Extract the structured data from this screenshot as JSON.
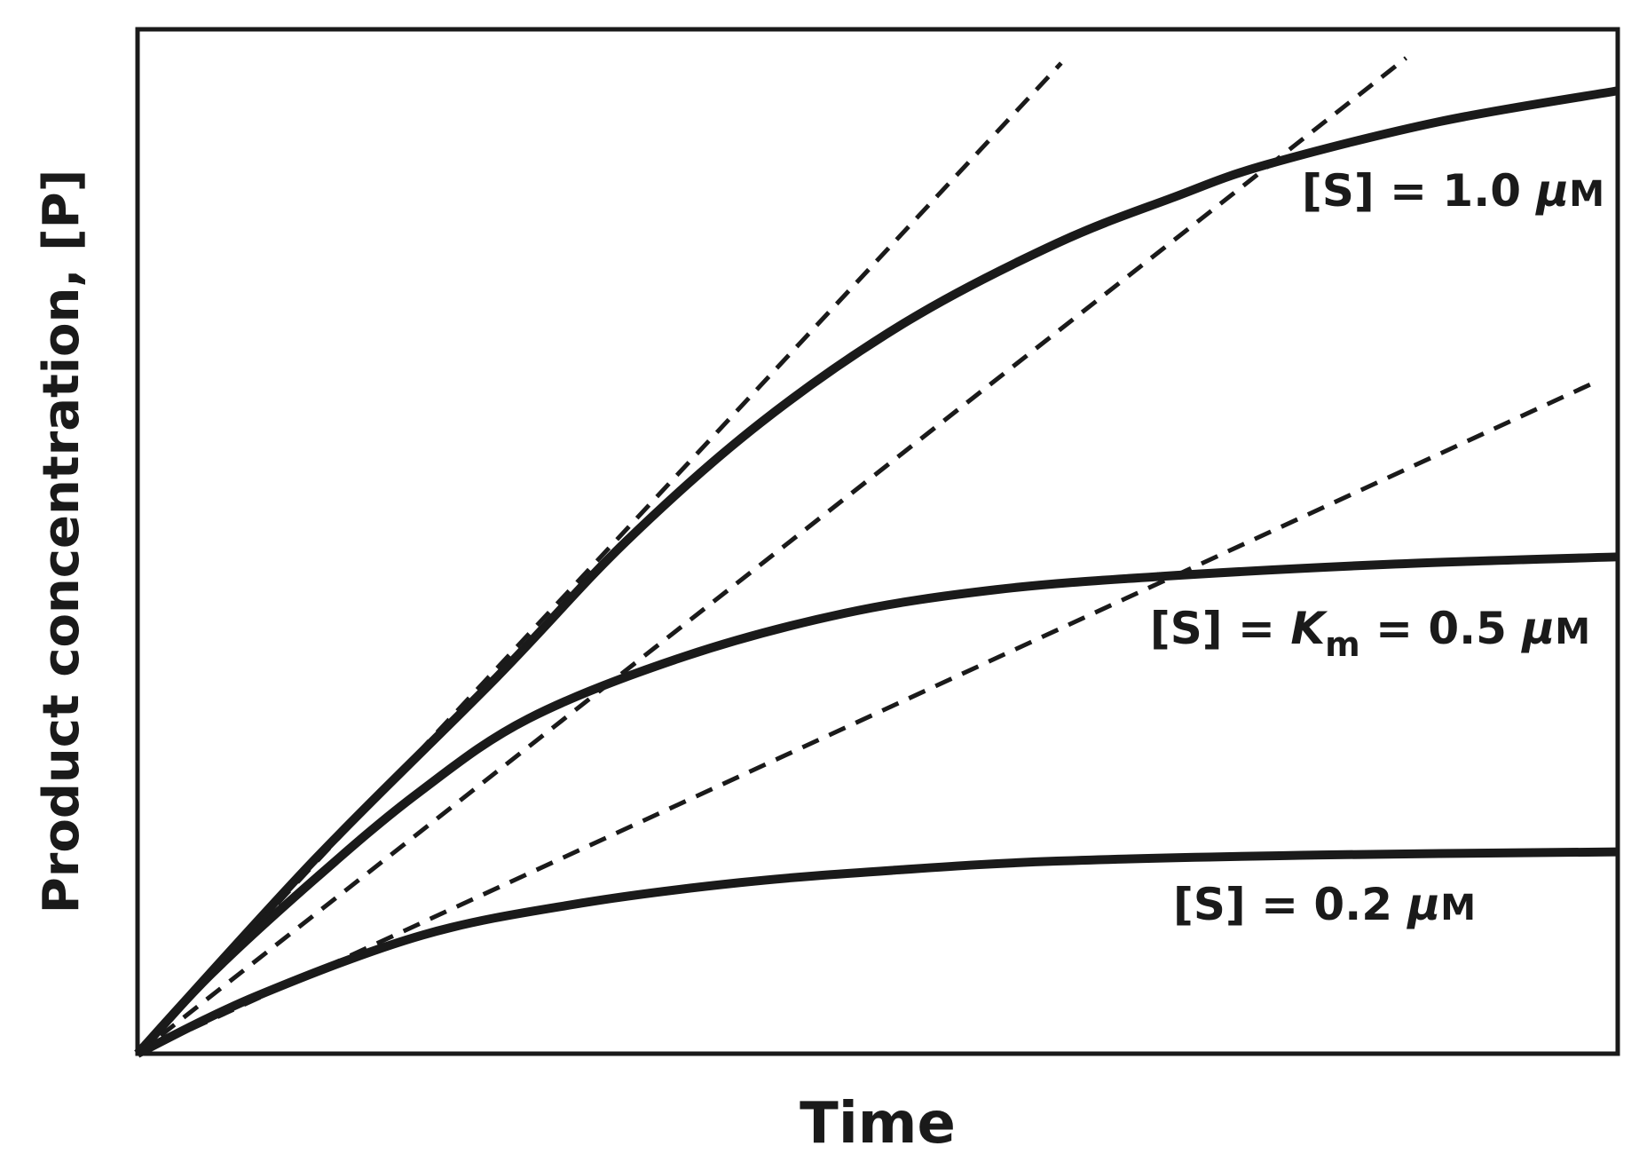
{
  "chart_data": {
    "type": "line",
    "title": "",
    "xlabel": "Time",
    "ylabel": "Product concentration, [P]",
    "xlim": [
      0,
      100
    ],
    "ylim": [
      0,
      100
    ],
    "grid": false,
    "ticks": false,
    "series": [
      {
        "name": "[S] = 1.0 μM",
        "style": "solid",
        "x": [
          0,
          12,
          24.3,
          33,
          42.1,
          52,
          62.1,
          70,
          76.3,
          88,
          100
        ],
        "y": [
          0,
          19,
          36.8,
          50,
          61.6,
          71.5,
          79.1,
          83.6,
          86.8,
          91,
          94
        ]
      },
      {
        "name": "[S] = Km = 0.5 μM",
        "style": "solid",
        "x": [
          0,
          5,
          12.1,
          19,
          26.4,
          37,
          47.8,
          58,
          69.2,
          85,
          100
        ],
        "y": [
          0,
          7.8,
          17.2,
          25.5,
          32.7,
          38.8,
          43,
          45.3,
          46.6,
          47.8,
          48.5
        ]
      },
      {
        "name": "[S] = 0.2 μM",
        "style": "solid",
        "x": [
          0,
          8,
          19.3,
          30,
          40.7,
          51,
          62.1,
          80,
          100
        ],
        "y": [
          0,
          5.6,
          11.6,
          14.7,
          16.7,
          17.9,
          18.8,
          19.4,
          19.7
        ]
      },
      {
        "name": "",
        "style": "dashed",
        "x": [
          0,
          62.4
        ],
        "y": [
          0,
          96.7
        ]
      },
      {
        "name": "",
        "style": "dashed",
        "x": [
          0,
          85.7
        ],
        "y": [
          0,
          97.2
        ]
      },
      {
        "name": "",
        "style": "dashed",
        "x": [
          0,
          98.4
        ],
        "y": [
          0,
          65.5
        ]
      }
    ],
    "annotations": [
      {
        "parts": [
          "[S] = 1.0 ",
          "μ",
          "M"
        ]
      },
      {
        "parts": [
          "[S] = ",
          "K",
          "m",
          " = 0.5 ",
          "μ",
          "M"
        ]
      },
      {
        "parts": [
          "[S] = 0.2 ",
          "μ",
          "M"
        ]
      }
    ],
    "colors": {
      "line": "#1a1a1a"
    }
  }
}
